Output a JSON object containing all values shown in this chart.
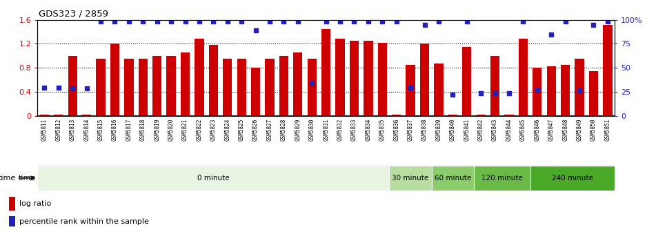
{
  "title": "GDS323 / 2859",
  "samples": [
    "GSM5811",
    "GSM5812",
    "GSM5813",
    "GSM5814",
    "GSM5815",
    "GSM5816",
    "GSM5817",
    "GSM5818",
    "GSM5819",
    "GSM5820",
    "GSM5821",
    "GSM5822",
    "GSM5823",
    "GSM5824",
    "GSM5825",
    "GSM5826",
    "GSM5827",
    "GSM5828",
    "GSM5829",
    "GSM5830",
    "GSM5831",
    "GSM5832",
    "GSM5833",
    "GSM5834",
    "GSM5835",
    "GSM5836",
    "GSM5837",
    "GSM5838",
    "GSM5839",
    "GSM5840",
    "GSM5841",
    "GSM5842",
    "GSM5843",
    "GSM5844",
    "GSM5845",
    "GSM5846",
    "GSM5847",
    "GSM5848",
    "GSM5849",
    "GSM5850",
    "GSM5851"
  ],
  "log_ratio": [
    0.02,
    0.02,
    1.0,
    0.02,
    0.95,
    1.2,
    0.95,
    0.95,
    1.0,
    1.0,
    1.05,
    1.28,
    1.18,
    0.95,
    0.95,
    0.8,
    0.95,
    1.0,
    1.05,
    0.95,
    1.45,
    1.28,
    1.25,
    1.25,
    1.22,
    0.02,
    0.85,
    1.2,
    0.87,
    0.02,
    1.15,
    0.02,
    1.0,
    0.02,
    1.28,
    0.8,
    0.83,
    0.85,
    0.95,
    0.75,
    1.52
  ],
  "percentile_rank": [
    0.475,
    0.47,
    0.46,
    0.46,
    1.57,
    1.57,
    1.57,
    1.57,
    1.57,
    1.57,
    1.57,
    1.57,
    1.57,
    1.57,
    1.57,
    1.42,
    1.57,
    1.57,
    1.57,
    0.55,
    1.57,
    1.57,
    1.57,
    1.57,
    1.57,
    1.57,
    0.47,
    1.52,
    1.57,
    0.35,
    1.57,
    0.38,
    0.38,
    0.38,
    1.57,
    0.44,
    1.35,
    1.57,
    0.42,
    1.52,
    1.57
  ],
  "time_groups": [
    {
      "label": "0 minute",
      "start": 0,
      "end": 25,
      "color": "#e8f5e2"
    },
    {
      "label": "30 minute",
      "start": 25,
      "end": 28,
      "color": "#b8dda0"
    },
    {
      "label": "60 minute",
      "start": 28,
      "end": 31,
      "color": "#8ccc6c"
    },
    {
      "label": "120 minute",
      "start": 31,
      "end": 35,
      "color": "#6aba48"
    },
    {
      "label": "240 minute",
      "start": 35,
      "end": 41,
      "color": "#4aaa28"
    }
  ],
  "bar_color": "#cc0000",
  "dot_color": "#2222bb",
  "ylim_left": [
    0.0,
    1.6
  ],
  "ylim_right": [
    0,
    100
  ],
  "yticks_left": [
    0,
    0.4,
    0.8,
    1.2,
    1.6
  ],
  "ytick_labels_left": [
    "0",
    "0.4",
    "0.8",
    "1.2",
    "1.6"
  ],
  "yticks_right": [
    0,
    25,
    50,
    75,
    100
  ],
  "ytick_labels_right": [
    "0",
    "25",
    "50",
    "75",
    "100%"
  ],
  "bar_color_left": "#cc0000",
  "tick_color_right": "#2222bb",
  "xticklabel_bg": "#d0d0d0",
  "xticklabel_fontsize": 5.5,
  "legend_bar_label": "log ratio",
  "legend_dot_label": "percentile rank within the sample",
  "time_label": "time",
  "chart_top_line_color": "black",
  "dotted_line_color": "black",
  "dotted_line_values": [
    0.4,
    0.8,
    1.2
  ]
}
